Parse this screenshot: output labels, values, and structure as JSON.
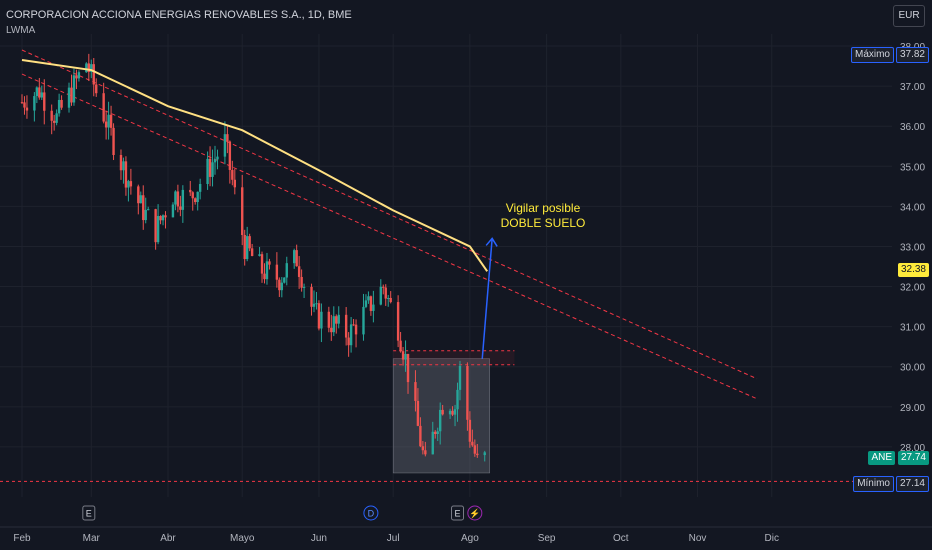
{
  "header": {
    "title": "CORPORACION ACCIONA ENERGIAS RENOVABLES S.A., 1D, BME",
    "indicator": "LWMA",
    "currency": "EUR"
  },
  "price_tags": {
    "max_label": "Máximo",
    "max_value": "37.82",
    "min_label": "Mínimo",
    "min_value": "27.14",
    "last_label": "ANE",
    "last_value": "27.74",
    "ma_value": "32.38"
  },
  "annotation": {
    "line1": "Vigilar posible",
    "line2": "DOBLE SUELO"
  },
  "event_markers": [
    {
      "x": "2023-02-28",
      "label": "E",
      "kind": "earnings"
    },
    {
      "x": "2023-06-22",
      "label": "D",
      "kind": "dividend"
    },
    {
      "x": "2023-07-27",
      "label": "E",
      "kind": "earnings"
    },
    {
      "x": "2023-08-03",
      "label": "⚡",
      "kind": "split"
    }
  ],
  "colors": {
    "background": "#131722",
    "up": "#26a69a",
    "down": "#ef5350",
    "ma": "#ffe082",
    "trend": "#f23645",
    "arrow": "#2962ff",
    "box": "rgba(120,123,134,0.35)",
    "annotation": "#ffeb3b"
  },
  "chart_data": {
    "type": "candlestick",
    "x_axis": {
      "labels": [
        "Feb",
        "Mar",
        "Abr",
        "Mayo",
        "Jun",
        "Jul",
        "Ago",
        "Sep",
        "Oct",
        "Nov",
        "Dic"
      ],
      "month_starts": [
        "2023-02-01",
        "2023-03-01",
        "2023-04-01",
        "2023-05-01",
        "2023-06-01",
        "2023-07-01",
        "2023-08-01",
        "2023-09-01",
        "2023-10-01",
        "2023-11-01",
        "2023-12-01"
      ],
      "range": [
        "2023-02-01",
        "2023-12-31"
      ]
    },
    "y_axis": {
      "ticks": [
        28,
        29,
        30,
        31,
        32,
        33,
        34,
        35,
        36,
        37,
        38
      ],
      "range": [
        26.9,
        38.1
      ],
      "side": "right"
    },
    "series_close": [
      [
        "2023-02-01",
        36.6
      ],
      [
        "2023-02-08",
        36.9
      ],
      [
        "2023-02-15",
        36.2
      ],
      [
        "2023-02-22",
        37.0
      ],
      [
        "2023-02-27",
        37.6
      ],
      [
        "2023-03-06",
        36.3
      ],
      [
        "2023-03-13",
        35.1
      ],
      [
        "2023-03-20",
        34.1
      ],
      [
        "2023-03-27",
        33.4
      ],
      [
        "2023-04-03",
        34.3
      ],
      [
        "2023-04-10",
        34.2
      ],
      [
        "2023-04-17",
        34.9
      ],
      [
        "2023-04-24",
        35.6
      ],
      [
        "2023-05-02",
        33.0
      ],
      [
        "2023-05-09",
        32.4
      ],
      [
        "2023-05-16",
        32.2
      ],
      [
        "2023-05-23",
        32.7
      ],
      [
        "2023-05-30",
        31.3
      ],
      [
        "2023-06-06",
        31.1
      ],
      [
        "2023-06-13",
        30.8
      ],
      [
        "2023-06-20",
        31.4
      ],
      [
        "2023-06-27",
        32.0
      ],
      [
        "2023-07-03",
        31.0
      ],
      [
        "2023-07-06",
        30.2
      ],
      [
        "2023-07-10",
        28.8
      ],
      [
        "2023-07-14",
        27.5
      ],
      [
        "2023-07-18",
        28.5
      ],
      [
        "2023-07-22",
        29.3
      ],
      [
        "2023-07-26",
        29.0
      ],
      [
        "2023-07-28",
        29.9
      ],
      [
        "2023-08-01",
        28.3
      ],
      [
        "2023-08-04",
        27.6
      ],
      [
        "2023-08-08",
        27.74
      ]
    ],
    "ma_line": [
      [
        "2023-02-01",
        37.65
      ],
      [
        "2023-03-01",
        37.4
      ],
      [
        "2023-04-01",
        36.5
      ],
      [
        "2023-05-01",
        35.9
      ],
      [
        "2023-06-01",
        34.9
      ],
      [
        "2023-07-01",
        33.9
      ],
      [
        "2023-08-01",
        33.0
      ],
      [
        "2023-08-08",
        32.38
      ]
    ],
    "trendlines": [
      {
        "from": [
          "2023-02-01",
          37.9
        ],
        "to": [
          "2023-11-25",
          29.7
        ]
      },
      {
        "from": [
          "2023-02-01",
          37.3
        ],
        "to": [
          "2023-11-25",
          29.2
        ]
      }
    ],
    "support": {
      "y": 27.14
    },
    "resistance_zone": [
      30.05,
      30.4
    ],
    "pattern_box": {
      "x": [
        "2023-07-01",
        "2023-08-09"
      ],
      "y": [
        27.35,
        30.2
      ]
    },
    "arrow": {
      "from": [
        "2023-08-06",
        30.2
      ],
      "to": [
        "2023-08-10",
        33.2
      ]
    },
    "extremes": {
      "max": 37.82,
      "min": 27.14,
      "last": 27.74,
      "ma_last": 32.38
    }
  }
}
